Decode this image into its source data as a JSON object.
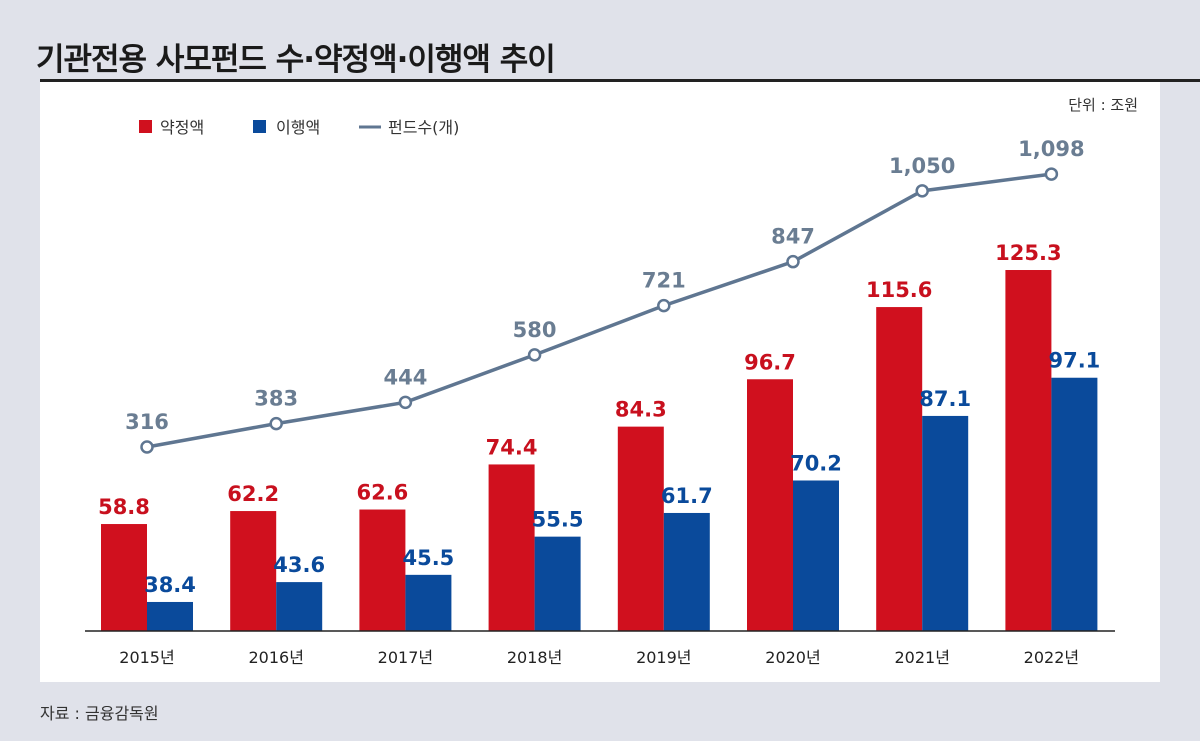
{
  "chart_data": {
    "type": "bar+line",
    "title": "기관전용 사모펀드 수·약정액·이행액 추이",
    "unit": "단위 : 조원",
    "source": "자료 : 금융감독원",
    "categories": [
      "2015년",
      "2016년",
      "2017년",
      "2018년",
      "2019년",
      "2020년",
      "2021년",
      "2022년"
    ],
    "series": [
      {
        "name": "약정액",
        "type": "bar",
        "color": "#d0101e",
        "label_color": "#c8101e",
        "values": [
          58.8,
          62.2,
          62.6,
          74.4,
          84.3,
          96.7,
          115.6,
          125.3
        ],
        "labels": [
          "58.8",
          "62.2",
          "62.6",
          "74.4",
          "84.3",
          "96.7",
          "115.6",
          "125.3"
        ]
      },
      {
        "name": "이행액",
        "type": "bar",
        "color": "#0a4a9b",
        "label_color": "#0a4a9b",
        "values": [
          38.4,
          43.6,
          45.5,
          55.5,
          61.7,
          70.2,
          87.1,
          97.1
        ],
        "labels": [
          "38.4",
          "43.6",
          "45.5",
          "55.5",
          "61.7",
          "70.2",
          "87.1",
          "97.1"
        ]
      },
      {
        "name": "펀드수(개)",
        "type": "line",
        "color": "#5f7691",
        "label_color": "#6a7d92",
        "values": [
          316,
          383,
          444,
          580,
          721,
          847,
          1050,
          1098
        ],
        "labels": [
          "316",
          "383",
          "444",
          "580",
          "721",
          "847",
          "1,050",
          "1,098"
        ]
      }
    ],
    "bar_axis_min": 30.8,
    "legend_position": "top-left",
    "grid": false
  }
}
